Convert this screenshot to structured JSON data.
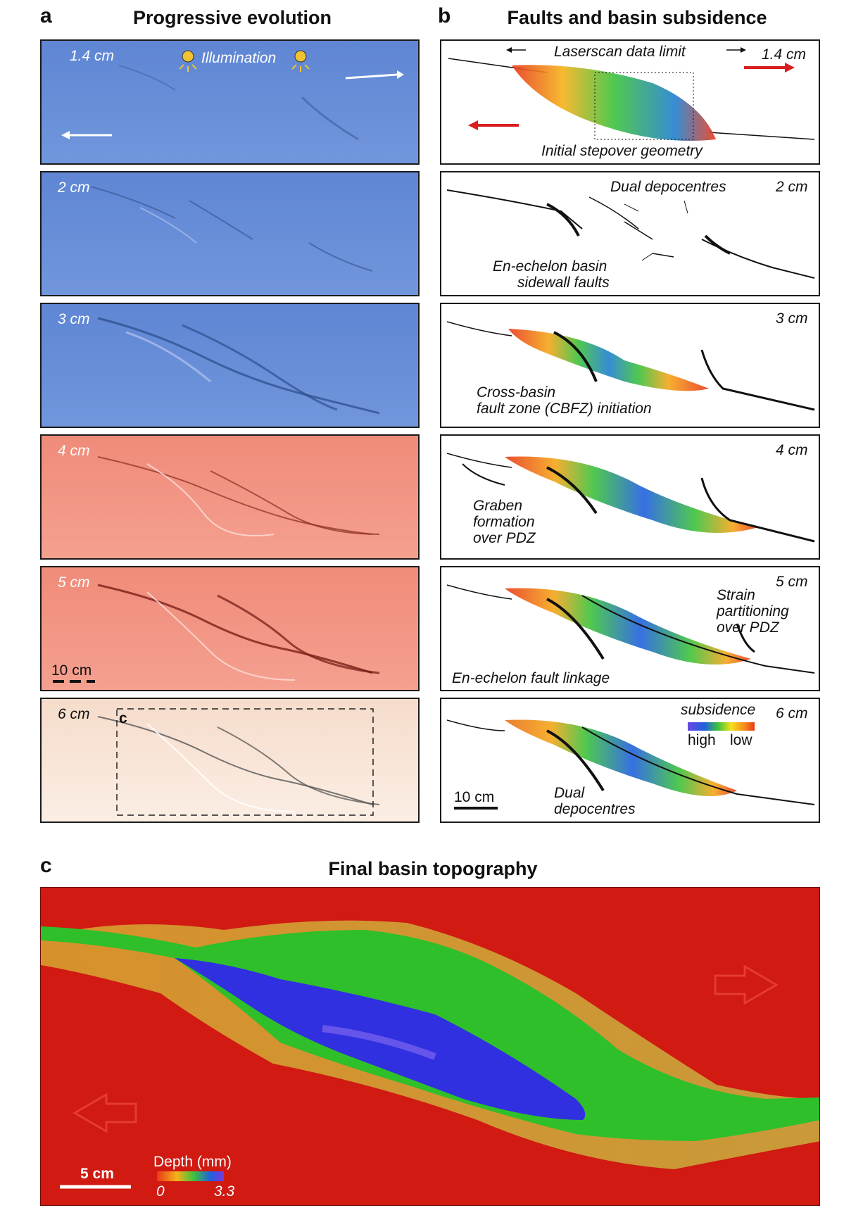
{
  "panel_a": {
    "letter": "a",
    "title": "Progressive evolution",
    "illumination": "Illumination",
    "scale_label": "10 cm",
    "inset_label": "c",
    "stages": [
      "1.4 cm",
      "2 cm",
      "3 cm",
      "4 cm",
      "5 cm",
      "6 cm"
    ],
    "tint_colors": [
      "#6a8fd8",
      "#6a8fd8",
      "#6a8fd8",
      "#f28a78",
      "#f28a78",
      "#f7e0d0"
    ]
  },
  "panel_b": {
    "letter": "b",
    "title": "Faults and basin subsidence",
    "stages": [
      "1.4 cm",
      "2 cm",
      "3 cm",
      "4 cm",
      "5 cm",
      "6 cm"
    ],
    "laserscan": "Laserscan data limit",
    "initial": "Initial stepover geometry",
    "dual1": "Dual depocentres",
    "sidewall": [
      "En-echelon basin",
      "sidewall faults"
    ],
    "cbfz": [
      "Cross-basin",
      "fault zone (CBFZ) initiation"
    ],
    "graben": [
      "Graben",
      "formation",
      "over PDZ"
    ],
    "strain": [
      "Strain",
      "partitioning",
      "over PDZ"
    ],
    "linkage": "En-echelon fault linkage",
    "subsidence": "subsidence",
    "high": "high",
    "low": "low",
    "dual2": [
      "Dual",
      "depocentres"
    ],
    "scale_label": "10 cm"
  },
  "panel_c": {
    "letter": "c",
    "title": "Final basin topography",
    "scale_label": "5 cm",
    "colorbar_title": "Depth (mm)",
    "colorbar_min": "0",
    "colorbar_max": "3.3"
  },
  "colors": {
    "arrow_red": "#d81e1e",
    "depth_background": "#d01a12",
    "depth_green": "#2fbf2a",
    "depth_blue": "#3030e0"
  }
}
